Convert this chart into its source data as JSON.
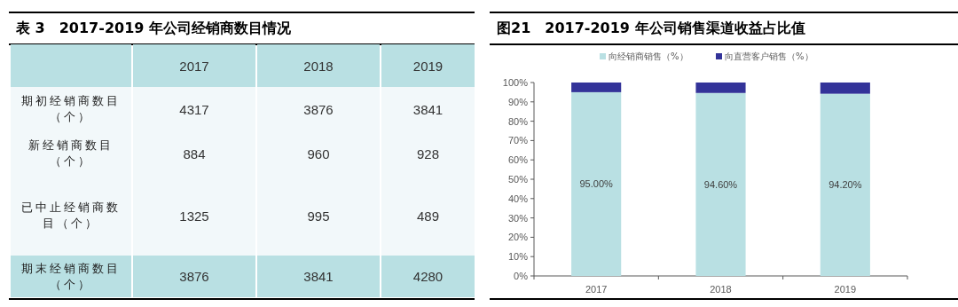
{
  "chart_data": [
    {
      "type": "other",
      "title": "表 3　2017-2019 年公司经销商数目情况",
      "categories": [
        "2017",
        "2018",
        "2019"
      ],
      "data_labels": true,
      "series": [
        {
          "name": "期初经销商数目（个）",
          "values": [
            4317,
            3876,
            3841
          ]
        },
        {
          "name": "新经销商数目（个）",
          "values": [
            884,
            960,
            928
          ]
        },
        {
          "name": "已中止经销商数目（个）",
          "values": [
            1325,
            995,
            489
          ]
        },
        {
          "name": "期末经销商数目（个）",
          "values": [
            3876,
            3841,
            4280
          ]
        }
      ]
    },
    {
      "type": "bar",
      "title": "图21　2017-2019 年公司销售渠道收益占比值",
      "categories": [
        "2017",
        "2018",
        "2019"
      ],
      "stacked": true,
      "series": [
        {
          "name": "向经销商销售（%）",
          "color": "#b9e0e3",
          "values": [
            95,
            94.6,
            94.2
          ],
          "value_labels": [
            "95.00%",
            "94.60%",
            "94.20%"
          ]
        },
        {
          "name": "向直营客户销售（%）",
          "color": "#333399",
          "values": [
            5,
            5.4,
            5.8
          ]
        }
      ],
      "ylim": [
        0,
        100
      ],
      "yticks": [
        {
          "value": 0,
          "label": "0%"
        },
        {
          "value": 10,
          "label": "10%"
        },
        {
          "value": 20,
          "label": "20%"
        },
        {
          "value": 30,
          "label": "30%"
        },
        {
          "value": 40,
          "label": "40%"
        },
        {
          "value": 50,
          "label": "50%"
        },
        {
          "value": 60,
          "label": "60%"
        },
        {
          "value": 70,
          "label": "70%"
        },
        {
          "value": 80,
          "label": "80%"
        },
        {
          "value": 90,
          "label": "90%"
        },
        {
          "value": 100,
          "label": "100%"
        }
      ],
      "legend": "top",
      "grid": false
    }
  ]
}
